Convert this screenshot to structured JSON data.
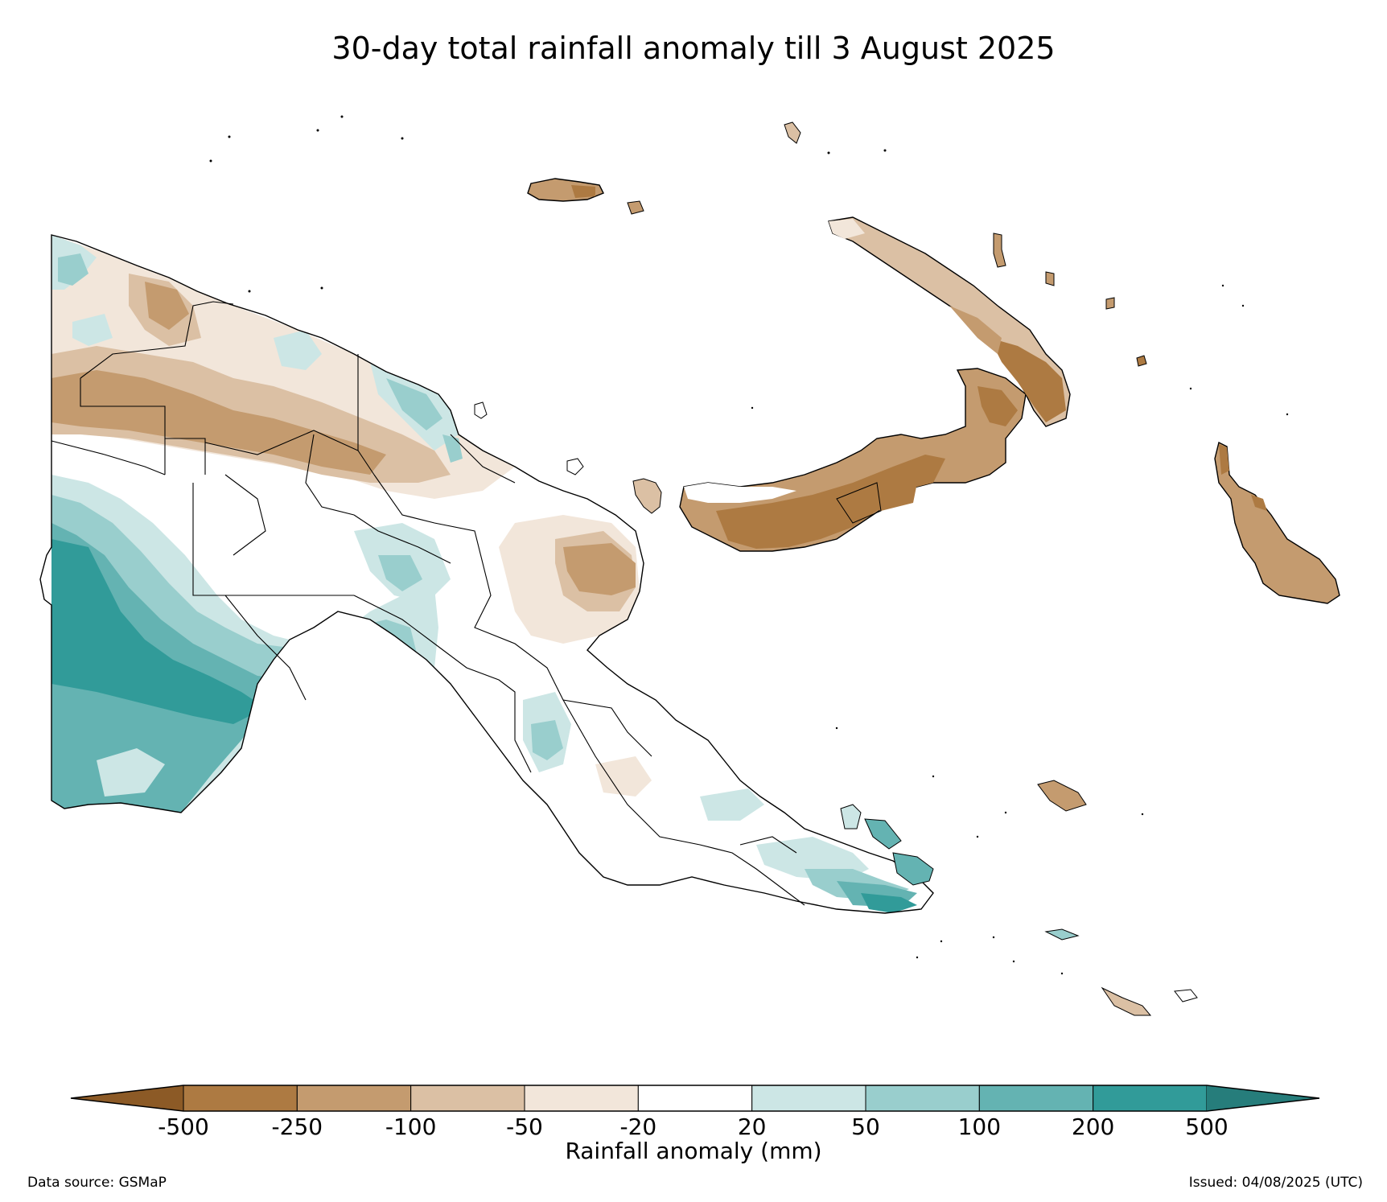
{
  "title": "30-day total rainfall anomaly till 3 August 2025",
  "colorbar": {
    "label": "Rainfall anomaly (mm)",
    "ticks": [
      "-500",
      "-250",
      "-100",
      "-50",
      "-20",
      "20",
      "50",
      "100",
      "200",
      "500"
    ],
    "bins": [
      {
        "color": "#8c5a26"
      },
      {
        "color": "#ad7a42"
      },
      {
        "color": "#c49b6f"
      },
      {
        "color": "#dbc0a4"
      },
      {
        "color": "#f2e6da"
      },
      {
        "color": "#ffffff"
      },
      {
        "color": "#cce6e5"
      },
      {
        "color": "#99cecd"
      },
      {
        "color": "#64b3b2"
      },
      {
        "color": "#319b99"
      },
      {
        "color": "#267d7b"
      }
    ]
  },
  "footer": {
    "data_source": "Data source: GSMaP",
    "issued": "Issued: 04/08/2025 (UTC)"
  },
  "legend_colors": {
    "very_dry": "#ad7a42",
    "dry": "#c49b6f",
    "moderately_dry": "#dbc0a4",
    "slightly_dry": "#f2e6da",
    "normal": "#ffffff",
    "slightly_wet": "#cce6e5",
    "moderately_wet": "#99cecd",
    "wet": "#64b3b2",
    "very_wet": "#319b99"
  }
}
